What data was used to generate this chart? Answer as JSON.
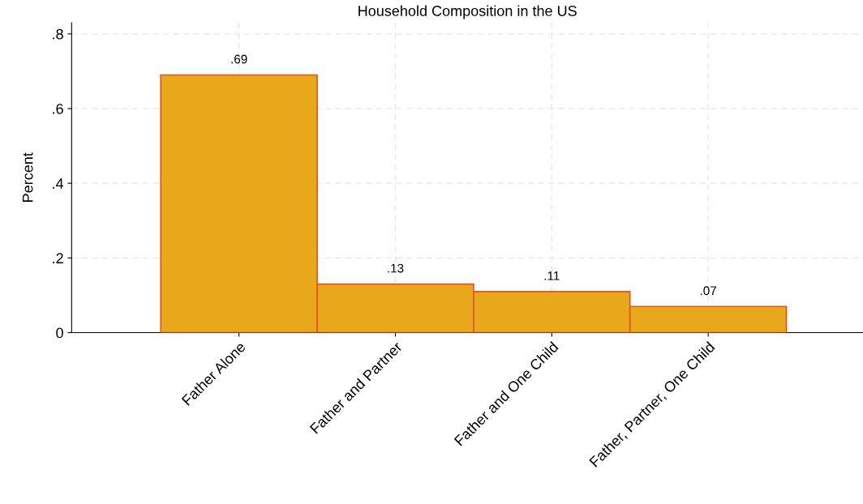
{
  "chart_data": {
    "type": "bar",
    "title": "Household Composition in the US",
    "ylabel": "Percent",
    "categories": [
      "Father Alone",
      "Father and Partner",
      "Father and One Child",
      "Father, Partner, One Child"
    ],
    "values": [
      0.69,
      0.13,
      0.11,
      0.07
    ],
    "value_labels": [
      ".69",
      ".13",
      ".11",
      ".07"
    ],
    "color": "#e8a81c",
    "ylim": [
      0,
      0.83
    ],
    "yticks": [
      {
        "value": 0,
        "label": "0"
      },
      {
        "value": 0.2,
        "label": ".2"
      },
      {
        "value": 0.4,
        "label": ".4"
      },
      {
        "value": 0.6,
        "label": ".6"
      },
      {
        "value": 0.8,
        "label": ".8"
      }
    ],
    "grid": true
  }
}
